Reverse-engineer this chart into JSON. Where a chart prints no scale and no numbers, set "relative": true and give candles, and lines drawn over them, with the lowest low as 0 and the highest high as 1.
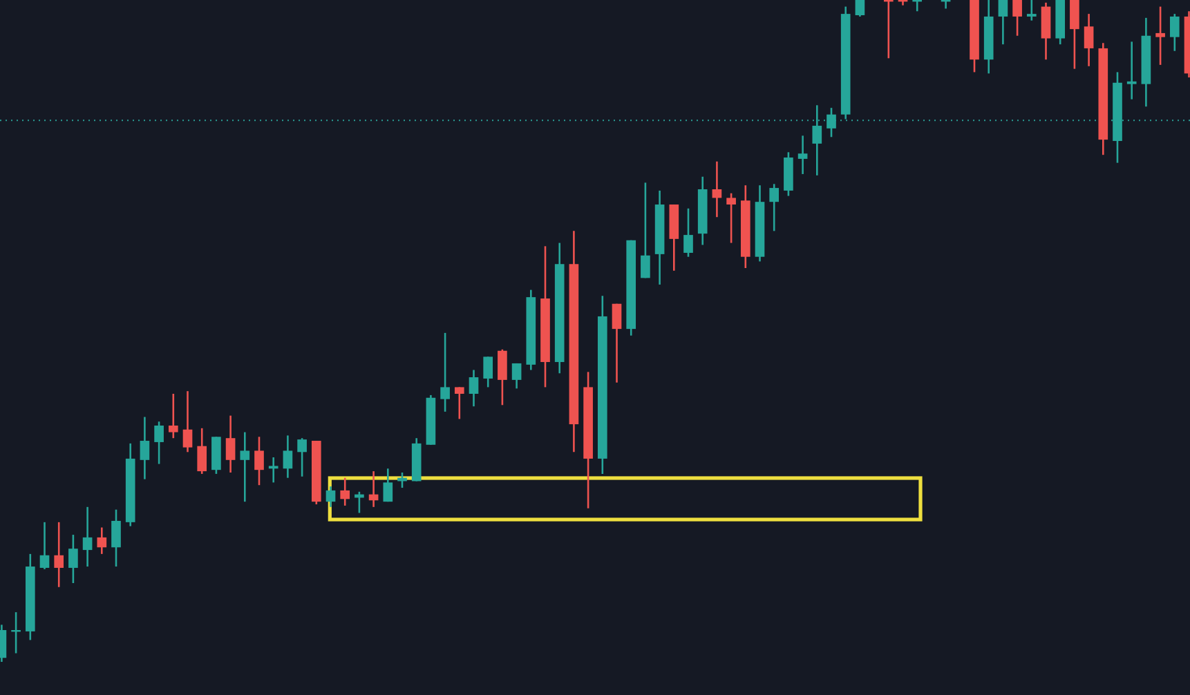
{
  "chart_data": {
    "type": "candlestick",
    "relative": true,
    "categories": [
      null,
      null,
      null,
      null,
      null,
      null,
      null,
      null,
      null,
      null,
      null,
      null,
      null,
      null,
      null,
      null,
      null,
      null,
      null,
      null,
      null,
      null,
      null,
      null,
      null,
      null,
      null,
      null,
      null,
      null,
      null,
      null,
      null,
      null,
      null,
      null,
      null,
      null,
      null,
      null,
      null,
      null,
      null,
      null,
      null,
      null,
      null,
      null,
      null,
      null,
      null,
      null,
      null,
      null,
      null,
      null,
      null,
      null,
      null,
      null,
      null,
      null,
      null,
      null,
      null,
      null,
      null,
      null,
      null,
      null,
      null,
      null,
      null,
      null,
      null,
      null,
      null,
      null,
      null,
      null,
      null,
      null,
      null,
      null
    ],
    "ohlc": [
      [
        0.006,
        0.056,
        0,
        0.048
      ],
      [
        0.046,
        0.075,
        0.013,
        0.048
      ],
      [
        0.046,
        0.163,
        0.033,
        0.144
      ],
      [
        0.142,
        0.211,
        0.14,
        0.161
      ],
      [
        0.161,
        0.211,
        0.113,
        0.142
      ],
      [
        0.142,
        0.192,
        0.119,
        0.171
      ],
      [
        0.169,
        0.234,
        0.144,
        0.188
      ],
      [
        0.188,
        0.203,
        0.163,
        0.173
      ],
      [
        0.173,
        0.23,
        0.144,
        0.213
      ],
      [
        0.211,
        0.33,
        0.205,
        0.307
      ],
      [
        0.305,
        0.37,
        0.276,
        0.334
      ],
      [
        0.332,
        0.363,
        0.299,
        0.357
      ],
      [
        0.357,
        0.405,
        0.338,
        0.347
      ],
      [
        0.351,
        0.409,
        0.317,
        0.324
      ],
      [
        0.326,
        0.353,
        0.284,
        0.288
      ],
      [
        0.29,
        0.34,
        0.284,
        0.34
      ],
      [
        0.338,
        0.372,
        0.286,
        0.305
      ],
      [
        0.305,
        0.347,
        0.242,
        0.319
      ],
      [
        0.319,
        0.34,
        0.267,
        0.29
      ],
      [
        0.292,
        0.309,
        0.271,
        0.296
      ],
      [
        0.292,
        0.342,
        0.278,
        0.319
      ],
      [
        0.317,
        0.338,
        0.28,
        0.336
      ],
      [
        0.334,
        0.334,
        0.238,
        0.242
      ],
      [
        0.242,
        0.265,
        0.234,
        0.259
      ],
      [
        0.259,
        0.278,
        0.236,
        0.246
      ],
      [
        0.248,
        0.257,
        0.225,
        0.253
      ],
      [
        0.253,
        0.288,
        0.234,
        0.244
      ],
      [
        0.242,
        0.292,
        0.242,
        0.271
      ],
      [
        0.273,
        0.286,
        0.263,
        0.278
      ],
      [
        0.273,
        0.338,
        0.273,
        0.33
      ],
      [
        0.328,
        0.403,
        0.328,
        0.399
      ],
      [
        0.397,
        0.497,
        0.378,
        0.415
      ],
      [
        0.415,
        0.415,
        0.367,
        0.405
      ],
      [
        0.405,
        0.441,
        0.386,
        0.43
      ],
      [
        0.428,
        0.461,
        0.415,
        0.461
      ],
      [
        0.47,
        0.472,
        0.388,
        0.426
      ],
      [
        0.426,
        0.451,
        0.413,
        0.451
      ],
      [
        0.449,
        0.562,
        0.441,
        0.551
      ],
      [
        0.549,
        0.628,
        0.415,
        0.453
      ],
      [
        0.453,
        0.633,
        0.436,
        0.601
      ],
      [
        0.601,
        0.651,
        0.317,
        0.359
      ],
      [
        0.415,
        0.438,
        0.232,
        0.307
      ],
      [
        0.307,
        0.553,
        0.284,
        0.522
      ],
      [
        0.541,
        0.541,
        0.422,
        0.503
      ],
      [
        0.503,
        0.637,
        0.493,
        0.637
      ],
      [
        0.58,
        0.724,
        0.58,
        0.614
      ],
      [
        0.616,
        0.712,
        0.57,
        0.691
      ],
      [
        0.691,
        0.691,
        0.591,
        0.639
      ],
      [
        0.618,
        0.685,
        0.612,
        0.645
      ],
      [
        0.647,
        0.733,
        0.63,
        0.714
      ],
      [
        0.714,
        0.756,
        0.672,
        0.701
      ],
      [
        0.701,
        0.708,
        0.633,
        0.691
      ],
      [
        0.697,
        0.72,
        0.595,
        0.612
      ],
      [
        0.612,
        0.72,
        0.605,
        0.695
      ],
      [
        0.695,
        0.722,
        0.651,
        0.716
      ],
      [
        0.712,
        0.77,
        0.704,
        0.762
      ],
      [
        0.76,
        0.795,
        0.737,
        0.768
      ],
      [
        0.783,
        0.841,
        0.735,
        0.81
      ],
      [
        0.806,
        0.837,
        0.793,
        0.827
      ],
      [
        0.827,
        0.99,
        0.82,
        0.979
      ],
      [
        0.977,
        1,
        0.975,
        1
      ],
      null,
      [
        1,
        1,
        0.912,
        1
      ],
      [
        1,
        1,
        0.992,
        1
      ],
      [
        1,
        1,
        0.983,
        1
      ],
      null,
      [
        1,
        1,
        0.987,
        1
      ],
      null,
      [
        1,
        1,
        0.891,
        0.91
      ],
      [
        0.91,
        1,
        0.889,
        0.975
      ],
      [
        0.975,
        1,
        0.933,
        1
      ],
      [
        1,
        1,
        0.946,
        0.975
      ],
      [
        0.975,
        1,
        0.969,
        0.979
      ],
      [
        0.99,
        0.996,
        0.91,
        0.942
      ],
      [
        0.942,
        1,
        0.933,
        1
      ],
      [
        1,
        1,
        0.896,
        0.956
      ],
      [
        0.96,
        0.979,
        0.9,
        0.927
      ],
      [
        0.927,
        0.935,
        0.766,
        0.789
      ],
      [
        0.787,
        0.891,
        0.754,
        0.875
      ],
      [
        0.873,
        0.937,
        0.85,
        0.877
      ],
      [
        0.873,
        0.973,
        0.839,
        0.946
      ],
      [
        0.95,
        0.99,
        0.902,
        0.944
      ],
      [
        0.944,
        0.979,
        0.923,
        0.975
      ],
      [
        0.975,
        0.983,
        0.883,
        0.889
      ]
    ],
    "colors": [
      "#26a69a",
      "#26a69a",
      "#26a69a",
      "#26a69a",
      "#ef5350",
      "#26a69a",
      "#26a69a",
      "#ef5350",
      "#26a69a",
      "#26a69a",
      "#26a69a",
      "#26a69a",
      "#ef5350",
      "#ef5350",
      "#ef5350",
      "#26a69a",
      "#ef5350",
      "#26a69a",
      "#ef5350",
      "#26a69a",
      "#26a69a",
      "#26a69a",
      "#ef5350",
      "#26a69a",
      "#ef5350",
      "#26a69a",
      "#ef5350",
      "#26a69a",
      "#26a69a",
      "#26a69a",
      "#26a69a",
      "#26a69a",
      "#ef5350",
      "#26a69a",
      "#26a69a",
      "#ef5350",
      "#26a69a",
      "#26a69a",
      "#ef5350",
      "#26a69a",
      "#ef5350",
      "#ef5350",
      "#26a69a",
      "#ef5350",
      "#26a69a",
      "#26a69a",
      "#26a69a",
      "#ef5350",
      "#26a69a",
      "#26a69a",
      "#ef5350",
      "#ef5350",
      "#ef5350",
      "#26a69a",
      "#26a69a",
      "#26a69a",
      "#26a69a",
      "#26a69a",
      "#26a69a",
      "#26a69a",
      "#26a69a",
      null,
      "#ef5350",
      "#ef5350",
      "#26a69a",
      null,
      "#26a69a",
      null,
      "#ef5350",
      "#26a69a",
      "#26a69a",
      "#ef5350",
      "#26a69a",
      "#ef5350",
      "#26a69a",
      "#ef5350",
      "#ef5350",
      "#ef5350",
      "#26a69a",
      "#26a69a",
      "#26a69a",
      "#ef5350",
      "#26a69a",
      "#ef5350"
    ],
    "ref_lines": [
      {
        "axis": "y",
        "value": 0.818,
        "color": "#2a9d94",
        "line_style": "dotted"
      }
    ]
  }
}
